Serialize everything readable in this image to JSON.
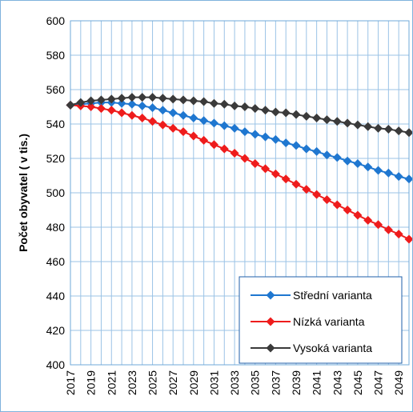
{
  "chart_data": {
    "type": "line",
    "title": "",
    "xlabel": "",
    "ylabel": "Počet obyvatel ( v tis.)",
    "ylim": [
      400,
      600
    ],
    "y_ticks": [
      "400",
      "420",
      "440",
      "460",
      "480",
      "500",
      "520",
      "540",
      "560",
      "580",
      "600"
    ],
    "x_tick_labels": [
      "2017",
      "2019",
      "2021",
      "2023",
      "2025",
      "2027",
      "2029",
      "2031",
      "2033",
      "2035",
      "2037",
      "2039",
      "2041",
      "2043",
      "2045",
      "2047",
      "2049"
    ],
    "x": [
      2017,
      2018,
      2019,
      2020,
      2021,
      2022,
      2023,
      2024,
      2025,
      2026,
      2027,
      2028,
      2029,
      2030,
      2031,
      2032,
      2033,
      2034,
      2035,
      2036,
      2037,
      2038,
      2039,
      2040,
      2041,
      2042,
      2043,
      2044,
      2045,
      2046,
      2047,
      2048,
      2049,
      2050
    ],
    "grid": true,
    "legend_position": "bottom-right",
    "series": [
      {
        "name": "Střední varianta",
        "color": "#1f77d0",
        "values": [
          551,
          551.5,
          552,
          552.5,
          552.5,
          552,
          551.5,
          550.5,
          549.5,
          548,
          546.5,
          545,
          543.5,
          542,
          540.5,
          539,
          537.5,
          535.5,
          534,
          532.5,
          531,
          529,
          527.5,
          525.5,
          524,
          522,
          520.5,
          518.5,
          517,
          515,
          513,
          511.5,
          509.5,
          508
        ]
      },
      {
        "name": "Nízká varianta",
        "color": "#ee1c1c",
        "values": [
          551,
          550.5,
          550,
          549,
          548,
          546.5,
          545,
          543.5,
          541.5,
          539.5,
          537.5,
          535.5,
          533,
          530.5,
          528,
          525.5,
          523,
          520,
          517,
          514,
          511,
          508,
          505,
          502,
          499,
          496,
          493,
          490,
          487,
          484,
          481.5,
          478.5,
          476,
          473
        ]
      },
      {
        "name": "Vysoká varianta",
        "color": "#3a3a3a",
        "values": [
          551,
          552.5,
          553.5,
          554,
          554.5,
          555,
          555.5,
          555.5,
          555.5,
          555,
          554.5,
          554,
          553.5,
          553,
          552,
          551.5,
          550.5,
          550,
          549,
          548,
          547,
          546.5,
          545.5,
          544.5,
          543.5,
          542.5,
          541.5,
          540.5,
          539.5,
          538.5,
          537.5,
          537,
          536,
          535
        ]
      }
    ]
  }
}
